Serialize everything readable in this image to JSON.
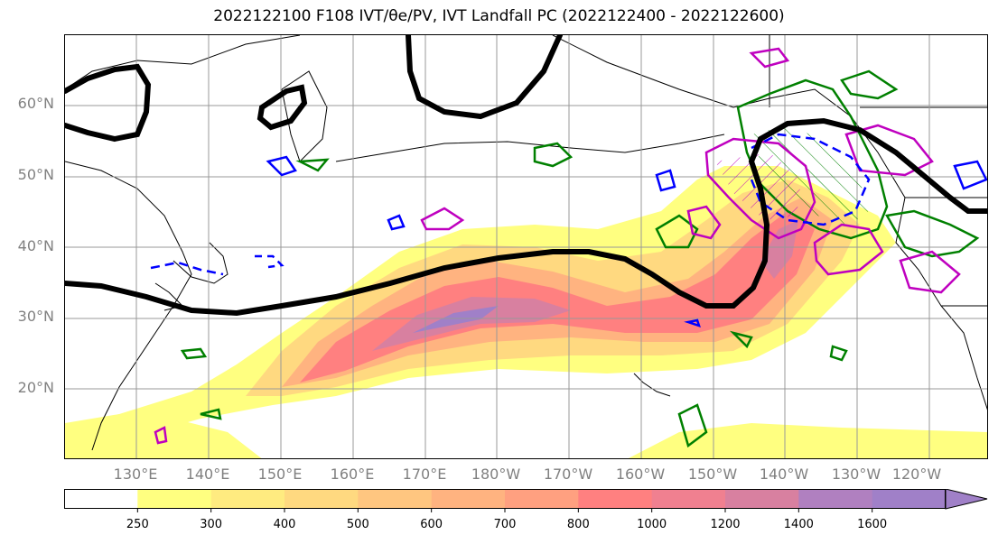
{
  "title": "2022122100 F108 IVT/θe/PV, IVT Landfall PC (2022122400 - 2022122600)",
  "map": {
    "lat_labels": [
      "60°N",
      "50°N",
      "40°N",
      "30°N",
      "20°N"
    ],
    "lon_labels": [
      "130°E",
      "140°E",
      "150°E",
      "160°E",
      "170°E",
      "180°W",
      "170°W",
      "160°W",
      "150°W",
      "140°W",
      "130°W",
      "120°W"
    ],
    "extent": {
      "lon_min": 120,
      "lon_max": 247,
      "lat_min": 10,
      "lat_max": 70
    },
    "colors": {
      "theta_e_contour": "#000000",
      "pv_contour_green": "#008000",
      "pc_contour_magenta": "#bf00bf",
      "blue_contour": "#0000ff",
      "land_outline": "#000000",
      "gridlines": "#999999"
    }
  },
  "colorbar": {
    "ticks": [
      "250",
      "300",
      "400",
      "500",
      "600",
      "700",
      "800",
      "1000",
      "1200",
      "1400",
      "1600"
    ],
    "colors": [
      "#ffffff",
      "#ffff80",
      "#ffeb80",
      "#ffd980",
      "#ffc680",
      "#ffb380",
      "#ffa080",
      "#ff8080",
      "#f08090",
      "#d880a0",
      "#b080c0",
      "#a080c8"
    ]
  }
}
